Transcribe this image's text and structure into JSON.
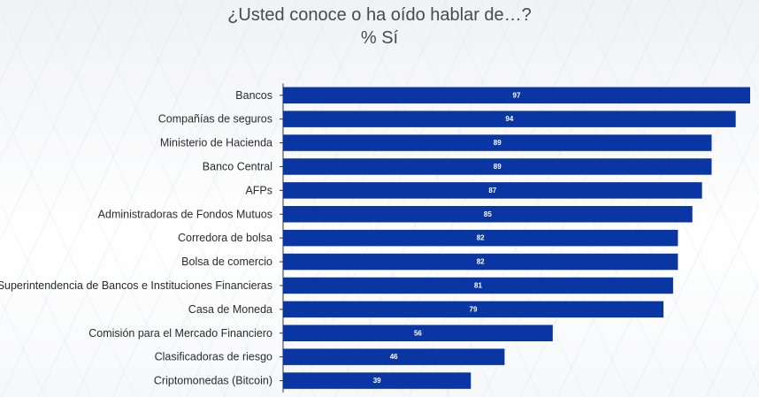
{
  "title": "¿Usted conoce o ha oído hablar de…?",
  "subtitle": "% Sí",
  "colors": {
    "bar": "#0a36a3",
    "axis": "#333333",
    "label": "#2b2b2b",
    "value": "#ffffff"
  },
  "chart_data": {
    "type": "bar",
    "orientation": "horizontal",
    "title": "¿Usted conoce o ha oído hablar de…?",
    "subtitle": "% Sí",
    "categories": [
      "Bancos",
      "Compañías de seguros",
      "Ministerio de Hacienda",
      "Banco Central",
      "AFPs",
      "Administradoras de Fondos Mutuos",
      "Corredora de bolsa",
      "Bolsa de comercio",
      "Superintendencia de Bancos e Instituciones Financieras",
      "Casa de Moneda",
      "Comisión para el Mercado Financiero",
      "Clasificadoras de riesgo",
      "Criptomonedas (Bitcoin)"
    ],
    "values": [
      97,
      94,
      89,
      89,
      87,
      85,
      82,
      82,
      81,
      79,
      56,
      46,
      39
    ],
    "xlim": [
      0,
      97
    ],
    "grid": false,
    "legend": "none",
    "data_labels": true
  }
}
